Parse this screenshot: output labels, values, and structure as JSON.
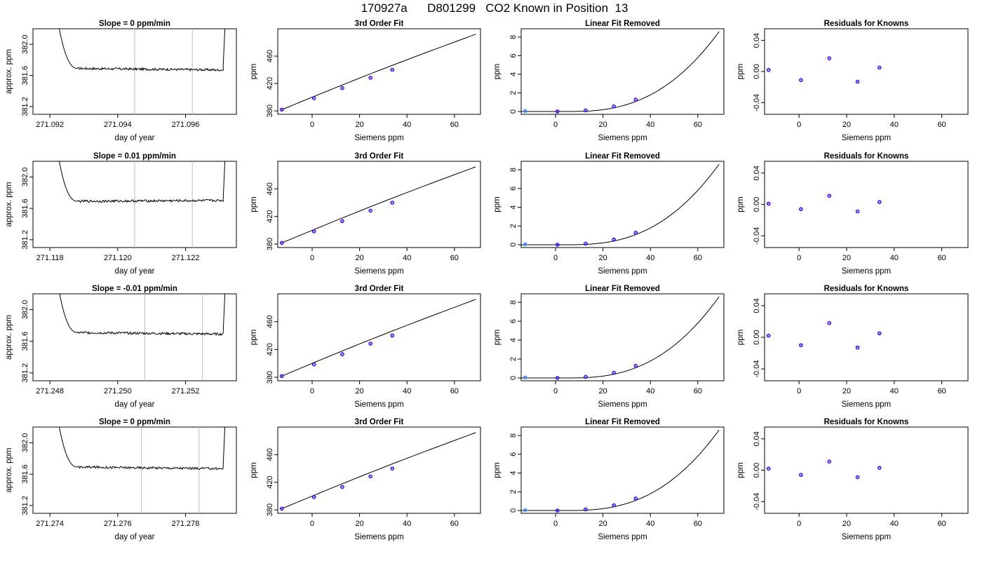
{
  "title": "170927a      D801299   CO2 Known in Position  13",
  "chart_data": [
    {
      "type": "line",
      "row": 1,
      "title": "Slope =  0  ppm/min",
      "xlabel": "day of year",
      "ylabel": "approx. ppm",
      "xlim": [
        271.0915,
        271.0975
      ],
      "ylim": [
        381.1,
        382.2
      ],
      "xticks": [
        "271.092",
        "271.094",
        "271.096"
      ],
      "yticks": [
        "381.2",
        "381.6",
        "382.0"
      ],
      "vlines": [
        271.0945,
        271.0962
      ],
      "grid": false
    },
    {
      "type": "line",
      "row": 1,
      "title": "3rd Order Fit",
      "xlabel": "Siemens ppm",
      "ylabel": "ppm",
      "xlim": [
        -14.5,
        71
      ],
      "ylim": [
        375,
        500
      ],
      "xticks": [
        "0",
        "20",
        "40",
        "60"
      ],
      "yticks": [
        "380",
        "420",
        "460"
      ],
      "points_x": [
        -12.8,
        0.8,
        12.7,
        24.6,
        33.8
      ],
      "points_y": [
        381.8,
        398.5,
        413.2,
        428.4,
        440.0
      ],
      "fit": {
        "x_start": -12.8,
        "x_end": 69,
        "y_start": 381.8,
        "y_end": 492
      },
      "grid": false
    },
    {
      "type": "scatter",
      "row": 1,
      "title": "Linear Fit Removed",
      "xlabel": "Siemens ppm",
      "ylabel": "ppm",
      "xlim": [
        -14.5,
        71
      ],
      "ylim": [
        -0.3,
        8.9
      ],
      "xticks": [
        "0",
        "20",
        "40",
        "60"
      ],
      "yticks": [
        "0",
        "2",
        "4",
        "6",
        "8"
      ],
      "points_x": [
        -12.8,
        0.8,
        12.7,
        24.6,
        33.8
      ],
      "points_y": [
        0.05,
        0.0,
        0.12,
        0.55,
        1.28
      ],
      "fit": {
        "x_end": 69,
        "y_end": 8.6
      },
      "grid": false
    },
    {
      "type": "scatter",
      "row": 1,
      "title": "Residuals for Knowns",
      "xlabel": "Siemens ppm",
      "ylabel": "ppm",
      "xlim": [
        -14.5,
        71
      ],
      "ylim": [
        -0.055,
        0.055
      ],
      "xticks": [
        "0",
        "20",
        "40",
        "60"
      ],
      "yticks": [
        "-0.04",
        "0.00",
        "0.04"
      ],
      "points_x": [
        -12.8,
        0.8,
        12.7,
        24.6,
        33.8
      ],
      "points_y": [
        0.002,
        -0.011,
        0.017,
        -0.013,
        0.005
      ],
      "grid": false
    },
    {
      "type": "line",
      "row": 2,
      "title": "Slope =  0.01  ppm/min",
      "xlabel": "day of year",
      "ylabel": "approx. ppm",
      "xlim": [
        271.1175,
        271.1235
      ],
      "ylim": [
        381.1,
        382.2
      ],
      "xticks": [
        "271.118",
        "271.120",
        "271.122"
      ],
      "yticks": [
        "381.2",
        "381.6",
        "382.0"
      ],
      "vlines": [
        271.1205,
        271.1222
      ],
      "grid": false
    },
    {
      "type": "line",
      "row": 2,
      "title": "3rd Order Fit",
      "xlabel": "Siemens ppm",
      "ylabel": "ppm",
      "xlim": [
        -14.5,
        71
      ],
      "ylim": [
        375,
        500
      ],
      "xticks": [
        "0",
        "20",
        "40",
        "60"
      ],
      "yticks": [
        "380",
        "420",
        "460"
      ],
      "points_x": [
        -12.8,
        0.8,
        12.7,
        24.6,
        33.8
      ],
      "points_y": [
        381.8,
        398.5,
        413.2,
        428.4,
        440.0
      ],
      "fit": {
        "x_start": -12.8,
        "x_end": 69,
        "y_start": 381.8,
        "y_end": 492
      },
      "grid": false
    },
    {
      "type": "scatter",
      "row": 2,
      "title": "Linear Fit Removed",
      "xlabel": "Siemens ppm",
      "ylabel": "ppm",
      "xlim": [
        -14.5,
        71
      ],
      "ylim": [
        -0.3,
        8.9
      ],
      "xticks": [
        "0",
        "20",
        "40",
        "60"
      ],
      "yticks": [
        "0",
        "2",
        "4",
        "6",
        "8"
      ],
      "points_x": [
        -12.8,
        0.8,
        12.7,
        24.6,
        33.8
      ],
      "points_y": [
        0.05,
        0.0,
        0.12,
        0.55,
        1.28
      ],
      "fit": {
        "x_end": 69,
        "y_end": 8.6
      },
      "grid": false
    },
    {
      "type": "scatter",
      "row": 2,
      "title": "Residuals for Knowns",
      "xlabel": "Siemens ppm",
      "ylabel": "ppm",
      "xlim": [
        -14.5,
        71
      ],
      "ylim": [
        -0.055,
        0.055
      ],
      "xticks": [
        "0",
        "20",
        "40",
        "60"
      ],
      "yticks": [
        "-0.04",
        "0.00",
        "0.04"
      ],
      "points_x": [
        -12.8,
        0.8,
        12.7,
        24.6,
        33.8
      ],
      "points_y": [
        0.001,
        -0.006,
        0.011,
        -0.009,
        0.003
      ],
      "grid": false
    },
    {
      "type": "line",
      "row": 3,
      "title": "Slope =  -0.01  ppm/min",
      "xlabel": "day of year",
      "ylabel": "approx. ppm",
      "xlim": [
        271.2475,
        271.2535
      ],
      "ylim": [
        381.1,
        382.2
      ],
      "xticks": [
        "271.248",
        "271.250",
        "271.252"
      ],
      "yticks": [
        "381.2",
        "381.6",
        "382.0"
      ],
      "vlines": [
        271.2508,
        271.2525
      ],
      "grid": false
    },
    {
      "type": "line",
      "row": 3,
      "title": "3rd Order Fit",
      "xlabel": "Siemens ppm",
      "ylabel": "ppm",
      "xlim": [
        -14.5,
        71
      ],
      "ylim": [
        375,
        500
      ],
      "xticks": [
        "0",
        "20",
        "40",
        "60"
      ],
      "yticks": [
        "380",
        "420",
        "460"
      ],
      "points_x": [
        -12.8,
        0.8,
        12.7,
        24.6,
        33.8
      ],
      "points_y": [
        381.8,
        398.5,
        413.2,
        428.4,
        440.0
      ],
      "fit": {
        "x_start": -12.8,
        "x_end": 69,
        "y_start": 381.8,
        "y_end": 492
      },
      "grid": false
    },
    {
      "type": "scatter",
      "row": 3,
      "title": "Linear Fit Removed",
      "xlabel": "Siemens ppm",
      "ylabel": "ppm",
      "xlim": [
        -14.5,
        71
      ],
      "ylim": [
        -0.3,
        8.9
      ],
      "xticks": [
        "0",
        "20",
        "40",
        "60"
      ],
      "yticks": [
        "0",
        "2",
        "4",
        "6",
        "8"
      ],
      "points_x": [
        -12.8,
        0.8,
        12.7,
        24.6,
        33.8
      ],
      "points_y": [
        0.05,
        0.0,
        0.12,
        0.55,
        1.28
      ],
      "fit": {
        "x_end": 69,
        "y_end": 8.6
      },
      "grid": false
    },
    {
      "type": "scatter",
      "row": 3,
      "title": "Residuals for Knowns",
      "xlabel": "Siemens ppm",
      "ylabel": "ppm",
      "xlim": [
        -14.5,
        71
      ],
      "ylim": [
        -0.055,
        0.055
      ],
      "xticks": [
        "0",
        "20",
        "40",
        "60"
      ],
      "yticks": [
        "-0.04",
        "0.00",
        "0.04"
      ],
      "points_x": [
        -12.8,
        0.8,
        12.7,
        24.6,
        33.8
      ],
      "points_y": [
        0.002,
        -0.01,
        0.018,
        -0.013,
        0.005
      ],
      "grid": false
    },
    {
      "type": "line",
      "row": 4,
      "title": "Slope =  0  ppm/min",
      "xlabel": "day of year",
      "ylabel": "approx. ppm",
      "xlim": [
        271.2735,
        271.2795
      ],
      "ylim": [
        381.1,
        382.2
      ],
      "xticks": [
        "271.274",
        "271.276",
        "271.278"
      ],
      "yticks": [
        "381.2",
        "381.6",
        "382.0"
      ],
      "vlines": [
        271.2767,
        271.2784
      ],
      "grid": false
    },
    {
      "type": "line",
      "row": 4,
      "title": "3rd Order Fit",
      "xlabel": "Siemens ppm",
      "ylabel": "ppm",
      "xlim": [
        -14.5,
        71
      ],
      "ylim": [
        375,
        500
      ],
      "xticks": [
        "0",
        "20",
        "40",
        "60"
      ],
      "yticks": [
        "380",
        "420",
        "460"
      ],
      "points_x": [
        -12.8,
        0.8,
        12.7,
        24.6,
        33.8
      ],
      "points_y": [
        381.8,
        398.5,
        413.2,
        428.4,
        440.0
      ],
      "fit": {
        "x_start": -12.8,
        "x_end": 69,
        "y_start": 381.8,
        "y_end": 492
      },
      "grid": false
    },
    {
      "type": "scatter",
      "row": 4,
      "title": "Linear Fit Removed",
      "xlabel": "Siemens ppm",
      "ylabel": "ppm",
      "xlim": [
        -14.5,
        71
      ],
      "ylim": [
        -0.3,
        8.9
      ],
      "xticks": [
        "0",
        "20",
        "40",
        "60"
      ],
      "yticks": [
        "0",
        "2",
        "4",
        "6",
        "8"
      ],
      "points_x": [
        -12.8,
        0.8,
        12.7,
        24.6,
        33.8
      ],
      "points_y": [
        0.05,
        0.0,
        0.12,
        0.55,
        1.28
      ],
      "fit": {
        "x_end": 69,
        "y_end": 8.6
      },
      "grid": false
    },
    {
      "type": "scatter",
      "row": 4,
      "title": "Residuals for Knowns",
      "xlabel": "Siemens ppm",
      "ylabel": "ppm",
      "xlim": [
        -14.5,
        71
      ],
      "ylim": [
        -0.055,
        0.055
      ],
      "xticks": [
        "0",
        "20",
        "40",
        "60"
      ],
      "yticks": [
        "-0.04",
        "0.00",
        "0.04"
      ],
      "points_x": [
        -12.8,
        0.8,
        12.7,
        24.6,
        33.8
      ],
      "points_y": [
        0.002,
        -0.006,
        0.011,
        -0.009,
        0.003
      ],
      "grid": false
    }
  ],
  "colors": {
    "line": "#000000",
    "vline": "#bebebe",
    "point_outer": "#0000ff",
    "point_inner": "#a020f0",
    "point_first": "#00bfff",
    "accent": "#ff0000"
  }
}
